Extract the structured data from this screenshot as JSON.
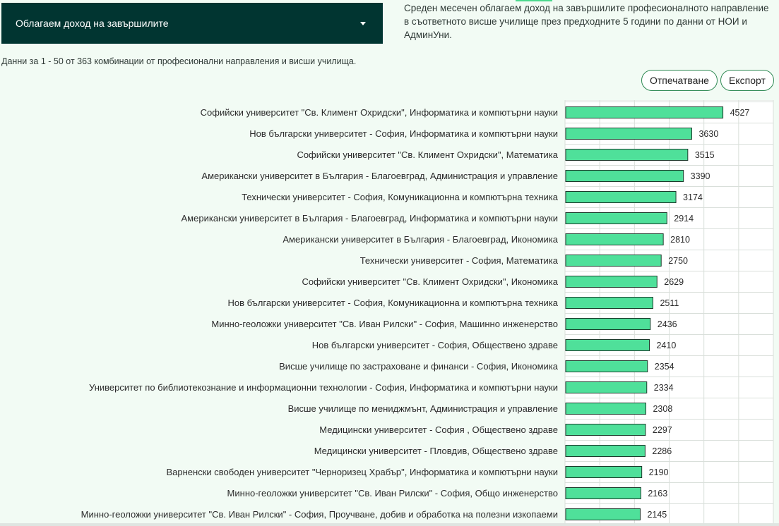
{
  "filter": {
    "selected_label": "Облагаем доход на завършилите"
  },
  "description": "Среден месечен облагаем доход на завършилите професионалното направление в съответното висше училище през предходните 5 години по данни от НОИ и АдминУни.",
  "summary": "Данни за 1 - 50 от 363 комбинации от професионални направления и висши училища.",
  "actions": {
    "print_label": "Отпечатване",
    "export_label": "Експорт"
  },
  "colors": {
    "bar_fill": "#4fe09a",
    "bar_stroke": "#1d3a2c",
    "grid": "#d9dfda",
    "plot_bg": "#ffffff",
    "dropdown_bg": "#013531",
    "button_border": "#2f8a54"
  },
  "chart_data": {
    "type": "bar",
    "orientation": "horizontal",
    "grid": true,
    "categories": [
      "Софийски университет \"Св. Климент Охридски\", Информатика и компютърни науки",
      "Нов български университет - София, Информатика и компютърни науки",
      "Софийски университет \"Св. Климент Охридски\", Математика",
      "Американски университет в България - Благоевград, Администрация и управление",
      "Технически университет - София, Комуникационна и компютърна техника",
      "Американски университет в България - Благоевград, Информатика и компютърни науки",
      "Американски университет в България - Благоевград, Икономика",
      "Технически университет - София, Математика",
      "Софийски университет \"Св. Климент Охридски\", Икономика",
      "Нов български университет - София, Комуникационна и компютърна техника",
      "Минно-геоложки университет \"Св. Иван Рилски\" - София, Машинно инженерство",
      "Нов български университет - София, Обществено здраве",
      "Висше училище по застраховане и финанси - София, Икономика",
      "Университет по библиотекознание и информационни технологии - София, Информатика и компютърни науки",
      "Висше училище по мениджмънт, Администрация и управление",
      "Медицински университет - София , Обществено здраве",
      "Медицински университет - Пловдив, Обществено здраве",
      "Варненски свободен университет \"Черноризец Храбър\", Информатика и компютърни науки",
      "Минно-геоложки университет \"Св. Иван Рилски\" - София, Общо инженерство",
      "Минно-геоложки университет \"Св. Иван Рилски\" - София, Проучване, добив и обработка на полезни изкопаеми"
    ],
    "values": [
      4527,
      3630,
      3515,
      3390,
      3174,
      2914,
      2810,
      2750,
      2629,
      2511,
      2436,
      2410,
      2354,
      2334,
      2308,
      2297,
      2286,
      2190,
      2163,
      2145
    ],
    "xlim": [
      0,
      6000
    ]
  }
}
